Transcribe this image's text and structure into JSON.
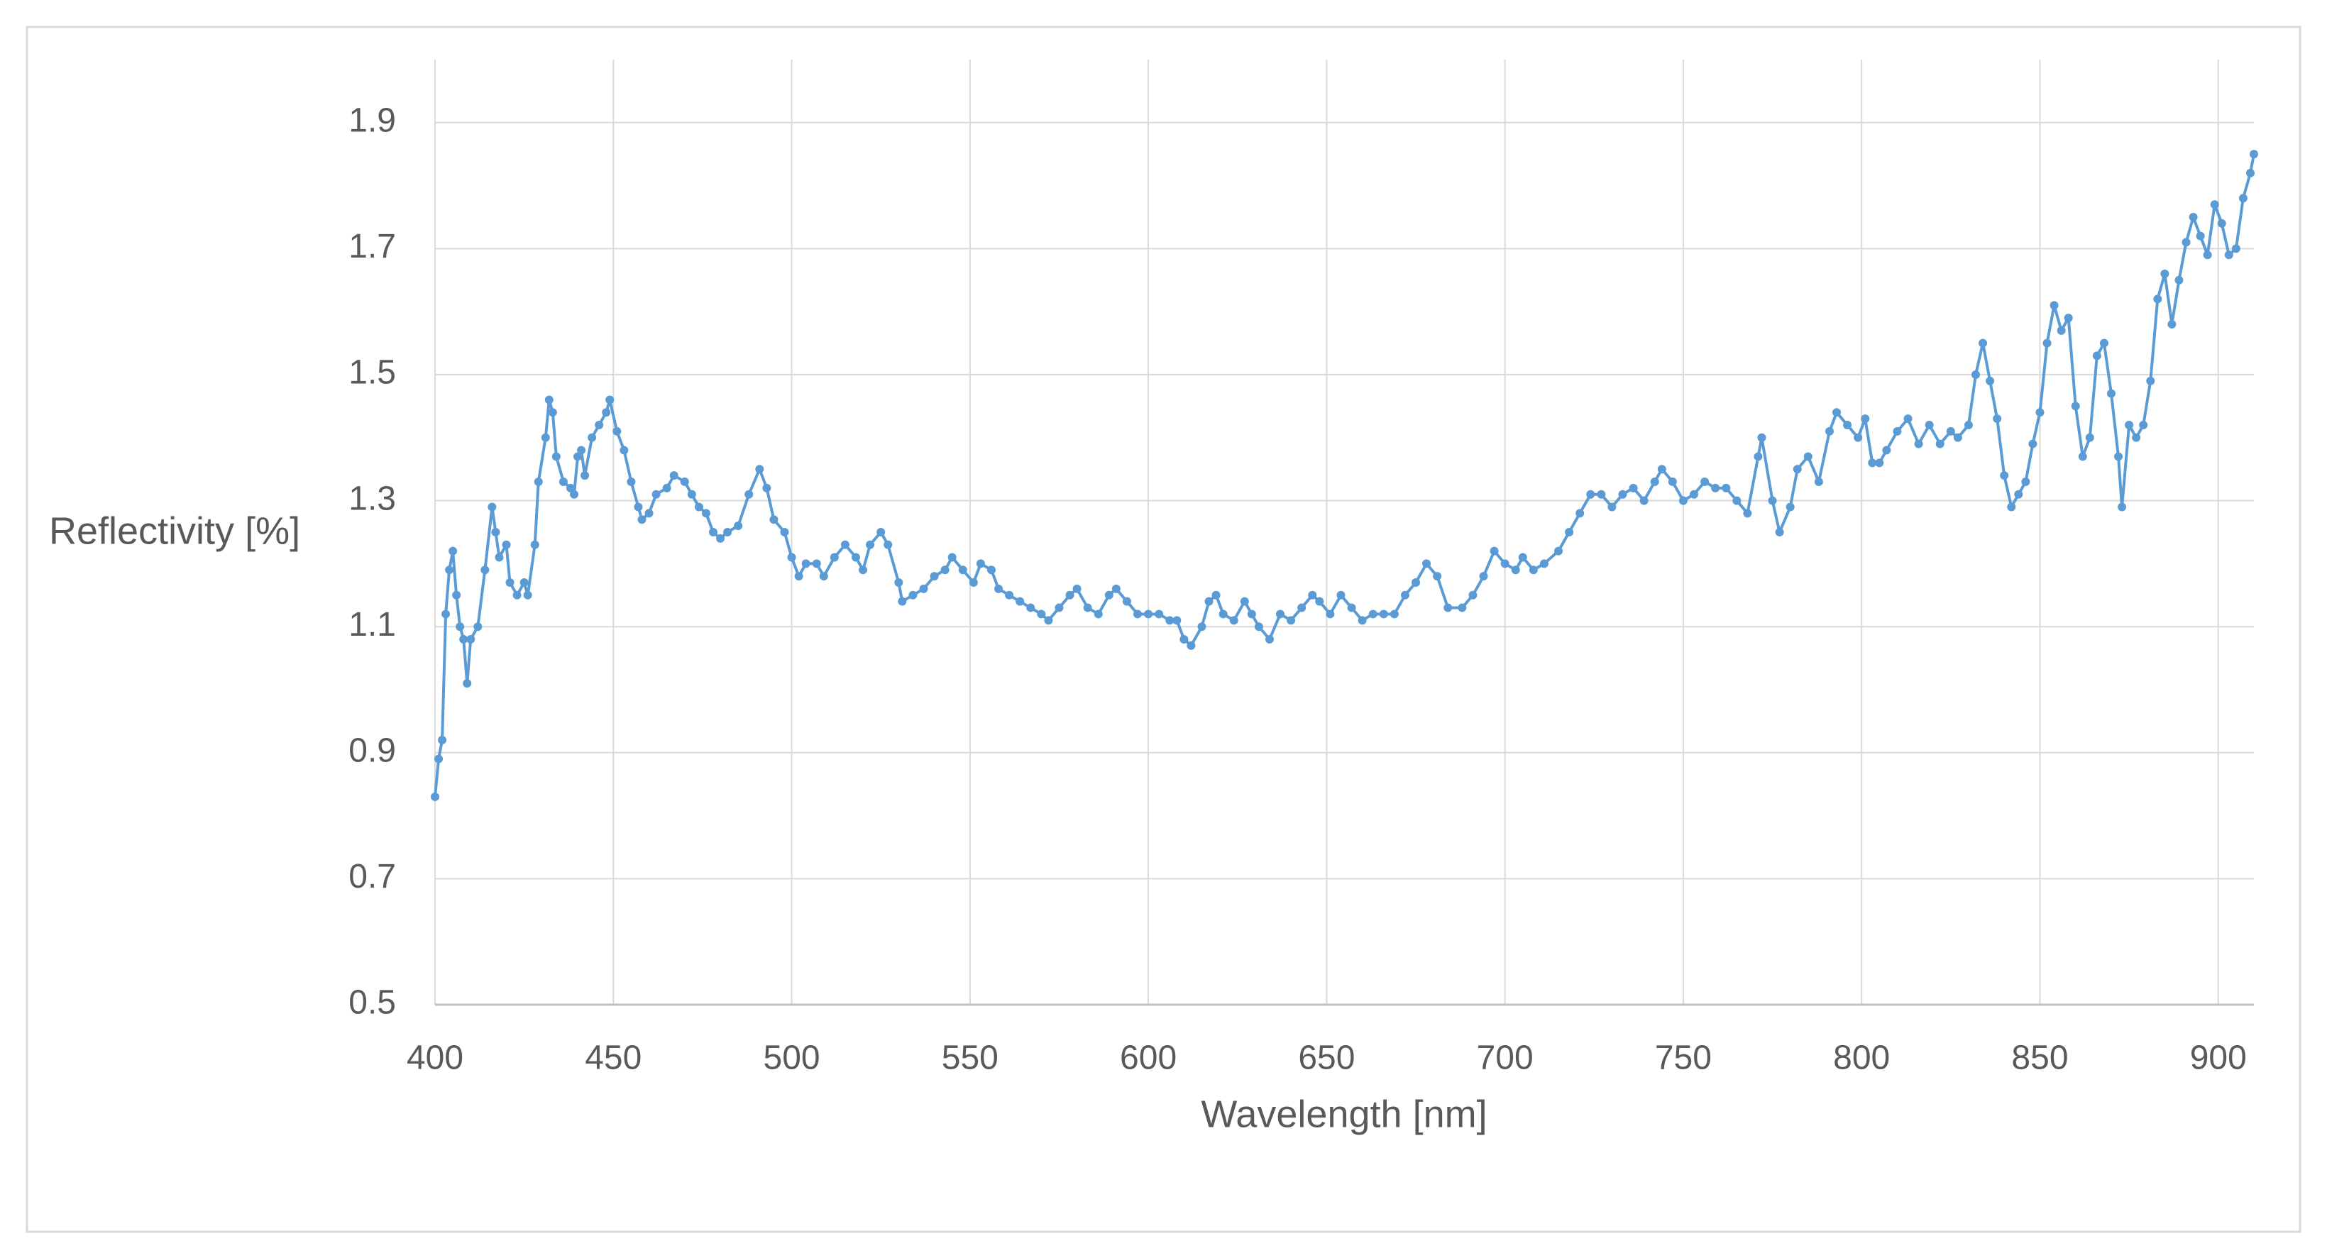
{
  "chart_data": {
    "type": "line",
    "x_label": "Wavelength [nm]",
    "y_label": "Reflectivity [%]",
    "xlim": [
      400,
      910
    ],
    "xticks": [
      400,
      450,
      500,
      550,
      600,
      650,
      700,
      750,
      800,
      850,
      900
    ],
    "ylim": [
      0.5,
      2.0
    ],
    "yticks": [
      0.5,
      0.7,
      0.9,
      1.1,
      1.3,
      1.5,
      1.7,
      1.9
    ],
    "grid": true,
    "markers": true,
    "color": "#5b9bd5",
    "x": [
      400,
      401,
      402,
      403,
      404,
      405,
      406,
      407,
      408,
      409,
      410,
      412,
      414,
      416,
      417,
      418,
      420,
      421,
      423,
      425,
      426,
      428,
      429,
      431,
      432,
      433,
      434,
      436,
      438,
      439,
      440,
      441,
      442,
      444,
      446,
      448,
      449,
      451,
      453,
      455,
      457,
      458,
      460,
      462,
      465,
      467,
      470,
      472,
      474,
      476,
      478,
      480,
      482,
      485,
      488,
      491,
      493,
      495,
      498,
      500,
      502,
      504,
      507,
      509,
      512,
      515,
      518,
      520,
      522,
      525,
      527,
      530,
      531,
      534,
      537,
      540,
      543,
      545,
      548,
      551,
      553,
      556,
      558,
      561,
      564,
      567,
      570,
      572,
      575,
      578,
      580,
      583,
      586,
      589,
      591,
      594,
      597,
      600,
      603,
      606,
      608,
      610,
      612,
      615,
      617,
      619,
      621,
      624,
      627,
      629,
      631,
      634,
      637,
      640,
      643,
      646,
      648,
      651,
      654,
      657,
      660,
      663,
      666,
      669,
      672,
      675,
      678,
      681,
      684,
      688,
      691,
      694,
      697,
      700,
      703,
      705,
      708,
      711,
      715,
      718,
      721,
      724,
      727,
      730,
      733,
      736,
      739,
      742,
      744,
      747,
      750,
      753,
      756,
      759,
      762,
      765,
      768,
      771,
      772,
      775,
      777,
      780,
      782,
      785,
      788,
      791,
      793,
      796,
      799,
      801,
      803,
      805,
      807,
      810,
      813,
      816,
      819,
      822,
      825,
      827,
      830,
      832,
      834,
      836,
      838,
      840,
      842,
      844,
      846,
      848,
      850,
      852,
      854,
      856,
      858,
      860,
      862,
      864,
      866,
      868,
      870,
      872,
      873,
      875,
      877,
      879,
      881,
      883,
      885,
      887,
      889,
      891,
      893,
      895,
      897,
      899,
      901,
      903,
      905,
      907,
      909,
      910
    ],
    "values": [
      0.83,
      0.89,
      0.92,
      1.12,
      1.19,
      1.22,
      1.15,
      1.1,
      1.08,
      1.01,
      1.08,
      1.1,
      1.19,
      1.29,
      1.25,
      1.21,
      1.23,
      1.17,
      1.15,
      1.17,
      1.15,
      1.23,
      1.33,
      1.4,
      1.46,
      1.44,
      1.37,
      1.33,
      1.32,
      1.31,
      1.37,
      1.38,
      1.34,
      1.4,
      1.42,
      1.44,
      1.46,
      1.41,
      1.38,
      1.33,
      1.29,
      1.27,
      1.28,
      1.31,
      1.32,
      1.34,
      1.33,
      1.31,
      1.29,
      1.28,
      1.25,
      1.24,
      1.25,
      1.26,
      1.31,
      1.35,
      1.32,
      1.27,
      1.25,
      1.21,
      1.18,
      1.2,
      1.2,
      1.18,
      1.21,
      1.23,
      1.21,
      1.19,
      1.23,
      1.25,
      1.23,
      1.17,
      1.14,
      1.15,
      1.16,
      1.18,
      1.19,
      1.21,
      1.19,
      1.17,
      1.2,
      1.19,
      1.16,
      1.15,
      1.14,
      1.13,
      1.12,
      1.11,
      1.13,
      1.15,
      1.16,
      1.13,
      1.12,
      1.15,
      1.16,
      1.14,
      1.12,
      1.12,
      1.12,
      1.11,
      1.11,
      1.08,
      1.07,
      1.1,
      1.14,
      1.15,
      1.12,
      1.11,
      1.14,
      1.12,
      1.1,
      1.08,
      1.12,
      1.11,
      1.13,
      1.15,
      1.14,
      1.12,
      1.15,
      1.13,
      1.11,
      1.12,
      1.12,
      1.12,
      1.15,
      1.17,
      1.2,
      1.18,
      1.13,
      1.13,
      1.15,
      1.18,
      1.22,
      1.2,
      1.19,
      1.21,
      1.19,
      1.2,
      1.22,
      1.25,
      1.28,
      1.31,
      1.31,
      1.29,
      1.31,
      1.32,
      1.3,
      1.33,
      1.35,
      1.33,
      1.3,
      1.31,
      1.33,
      1.32,
      1.32,
      1.3,
      1.28,
      1.37,
      1.4,
      1.3,
      1.25,
      1.29,
      1.35,
      1.37,
      1.33,
      1.41,
      1.44,
      1.42,
      1.4,
      1.43,
      1.36,
      1.36,
      1.38,
      1.41,
      1.43,
      1.39,
      1.42,
      1.39,
      1.41,
      1.4,
      1.42,
      1.5,
      1.55,
      1.49,
      1.43,
      1.34,
      1.29,
      1.31,
      1.33,
      1.39,
      1.44,
      1.55,
      1.61,
      1.57,
      1.59,
      1.45,
      1.37,
      1.4,
      1.53,
      1.55,
      1.47,
      1.37,
      1.29,
      1.42,
      1.4,
      1.42,
      1.49,
      1.62,
      1.66,
      1.58,
      1.65,
      1.71,
      1.75,
      1.72,
      1.69,
      1.77,
      1.74,
      1.69,
      1.7,
      1.78,
      1.82,
      1.85
    ]
  }
}
